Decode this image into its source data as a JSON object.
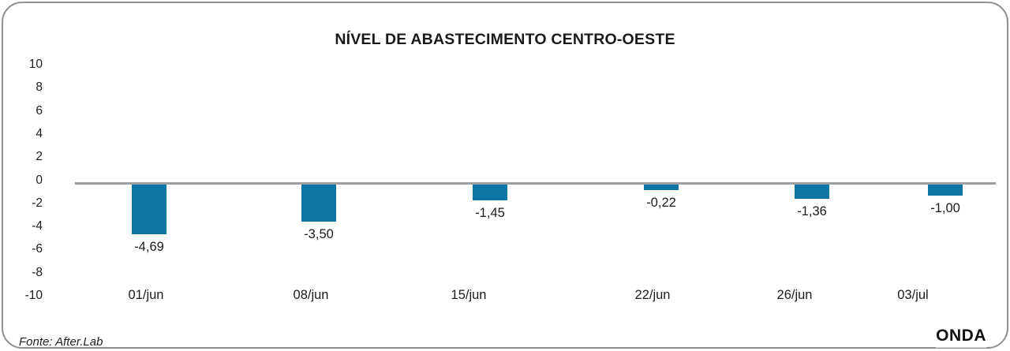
{
  "title": "NÍVEL DE ABASTECIMENTO CENTRO-OESTE",
  "footer": {
    "source": "Fonte: After.Lab",
    "logo": "ONDA"
  },
  "chart_data": {
    "type": "bar",
    "title": "NÍVEL DE ABASTECIMENTO CENTRO-OESTE",
    "categories": [
      "01/jun",
      "08/jun",
      "15/jun",
      "22/jun",
      "26/jun",
      "03/jul"
    ],
    "values": [
      -4.69,
      -3.5,
      -1.45,
      -0.22,
      -1.36,
      -1.0
    ],
    "value_labels": [
      "-4,69",
      "-3,50",
      "-1,45",
      "-0,22",
      "-1,36",
      "-1,00"
    ],
    "y_ticks": [
      10,
      8,
      6,
      4,
      2,
      0,
      -2,
      -4,
      -6,
      -8,
      -10
    ],
    "ylim": [
      -10,
      10
    ],
    "xlabel": "",
    "ylabel": "",
    "grid": false,
    "legend": false,
    "bar_color": "#0D76A5",
    "axis_line_color": "#9D9EA1",
    "text_color": "#1C1C1C"
  }
}
